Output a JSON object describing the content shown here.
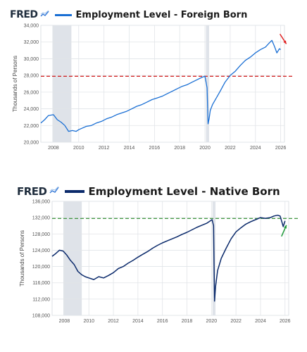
{
  "chart_data": [
    {
      "type": "line",
      "brand": "FRED",
      "title": "Employment Level - Foreign Born",
      "ylabel": "Thousands of Persons",
      "xlabel": "",
      "xlim": [
        2007.0,
        2026.3
      ],
      "ylim": [
        20000,
        34000
      ],
      "yticks": [
        20000,
        22000,
        24000,
        26000,
        28000,
        30000,
        32000,
        34000
      ],
      "ytick_labels": [
        "20,000",
        "22,000",
        "24,000",
        "26,000",
        "28,000",
        "30,000",
        "32,000",
        "34,000"
      ],
      "xticks": [
        2008,
        2010,
        2012,
        2014,
        2016,
        2018,
        2020,
        2022,
        2024,
        2026
      ],
      "xtick_labels": [
        "2008",
        "2010",
        "2012",
        "2014",
        "2016",
        "2018",
        "2020",
        "2022",
        "2024",
        "2026"
      ],
      "grid": true,
      "line_color": "#1a6fd4",
      "recessions": [
        [
          2007.92,
          2009.42
        ],
        [
          2020.08,
          2020.33
        ]
      ],
      "reference_line": {
        "y": 27900,
        "color": "#cc0000",
        "style": "dashed"
      },
      "arrow": {
        "color": "#e02020",
        "direction": "down"
      },
      "series": [
        {
          "x": [
            2007.0,
            2007.3,
            2007.6,
            2008.0,
            2008.3,
            2008.6,
            2008.9,
            2009.2,
            2009.5,
            2009.8,
            2010.0,
            2010.3,
            2010.6,
            2011.0,
            2011.4,
            2011.8,
            2012.2,
            2012.6,
            2013.0,
            2013.4,
            2013.8,
            2014.2,
            2014.6,
            2015.0,
            2015.4,
            2015.8,
            2016.2,
            2016.6,
            2017.0,
            2017.4,
            2017.8,
            2018.2,
            2018.6,
            2019.0,
            2019.4,
            2019.8,
            2020.0,
            2020.17,
            2020.25,
            2020.33,
            2020.42,
            2020.6,
            2020.9,
            2021.2,
            2021.6,
            2022.0,
            2022.4,
            2022.8,
            2023.2,
            2023.6,
            2024.0,
            2024.4,
            2024.8,
            2025.1,
            2025.3,
            2025.5,
            2025.7,
            2025.9,
            2026.0
          ],
          "y": [
            22300,
            22700,
            23200,
            23300,
            22700,
            22400,
            22000,
            21300,
            21400,
            21300,
            21500,
            21700,
            21900,
            22000,
            22300,
            22500,
            22800,
            23000,
            23300,
            23500,
            23700,
            24000,
            24300,
            24500,
            24800,
            25100,
            25300,
            25500,
            25800,
            26100,
            26400,
            26700,
            26900,
            27200,
            27500,
            27800,
            27900,
            26500,
            22200,
            22800,
            23800,
            24500,
            25300,
            26100,
            27200,
            28000,
            28500,
            29200,
            29800,
            30200,
            30700,
            31100,
            31400,
            31900,
            32200,
            31500,
            30700,
            31200,
            31100
          ]
        }
      ]
    },
    {
      "type": "line",
      "brand": "FRED",
      "title": "Employment Level - Native Born",
      "ylabel": "Thousands of Persons",
      "xlabel": "",
      "xlim": [
        2007.0,
        2026.3
      ],
      "ylim": [
        108000,
        136000
      ],
      "yticks": [
        108000,
        112000,
        116000,
        120000,
        124000,
        128000,
        132000,
        136000
      ],
      "ytick_labels": [
        "108,000",
        "112,000",
        "116,000",
        "120,000",
        "124,000",
        "128,000",
        "132,000",
        "136,000"
      ],
      "xticks": [
        2008,
        2010,
        2012,
        2014,
        2016,
        2018,
        2020,
        2022,
        2024,
        2026
      ],
      "xtick_labels": [
        "2008",
        "2010",
        "2012",
        "2014",
        "2016",
        "2018",
        "2020",
        "2022",
        "2024",
        "2026"
      ],
      "grid": true,
      "line_color": "#0b2a6b",
      "recessions": [
        [
          2007.92,
          2009.42
        ],
        [
          2020.08,
          2020.33
        ]
      ],
      "reference_line": {
        "y": 131800,
        "color": "#2a8a2a",
        "style": "dashed"
      },
      "arrow": {
        "color": "#1f9a3a",
        "direction": "up"
      },
      "series": [
        {
          "x": [
            2007.0,
            2007.3,
            2007.6,
            2007.9,
            2008.2,
            2008.5,
            2008.8,
            2009.1,
            2009.4,
            2009.7,
            2010.0,
            2010.4,
            2010.8,
            2011.2,
            2011.6,
            2012.0,
            2012.4,
            2012.8,
            2013.2,
            2013.6,
            2014.0,
            2014.4,
            2014.8,
            2015.2,
            2015.6,
            2016.0,
            2016.4,
            2016.8,
            2017.2,
            2017.6,
            2018.0,
            2018.4,
            2018.8,
            2019.2,
            2019.6,
            2019.9,
            2020.05,
            2020.17,
            2020.25,
            2020.33,
            2020.5,
            2020.8,
            2021.2,
            2021.6,
            2022.0,
            2022.4,
            2022.8,
            2023.2,
            2023.6,
            2024.0,
            2024.4,
            2024.8,
            2025.1,
            2025.4,
            2025.6,
            2025.75,
            2025.85,
            2026.0
          ],
          "y": [
            122500,
            123200,
            124000,
            123800,
            122800,
            121500,
            120500,
            118800,
            118000,
            117500,
            117200,
            116800,
            117500,
            117200,
            117800,
            118500,
            119500,
            120000,
            120800,
            121500,
            122300,
            123000,
            123700,
            124500,
            125200,
            125800,
            126300,
            126800,
            127300,
            127900,
            128400,
            129000,
            129600,
            130100,
            130600,
            131200,
            131500,
            130000,
            111500,
            115000,
            119000,
            122000,
            124500,
            126800,
            128500,
            129500,
            130400,
            131000,
            131500,
            132000,
            131800,
            132000,
            132400,
            132600,
            132400,
            130900,
            129800,
            131200
          ]
        }
      ]
    }
  ]
}
